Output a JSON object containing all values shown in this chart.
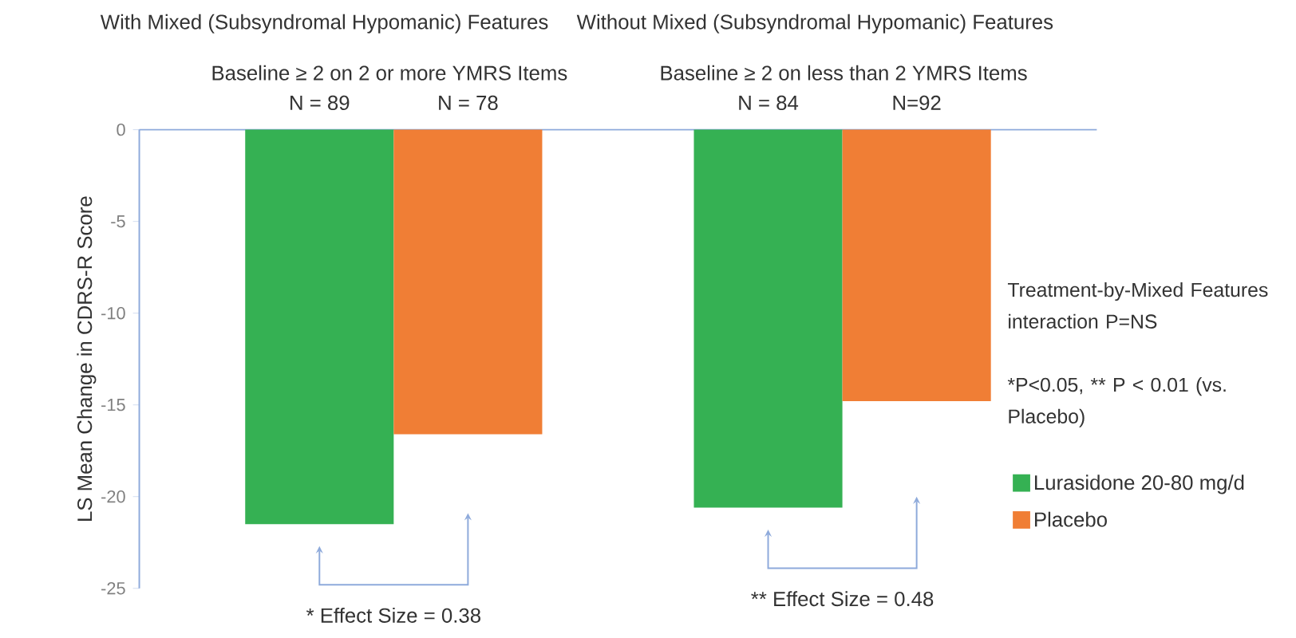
{
  "chart_data": {
    "type": "bar",
    "categories": [
      "With Mixed (Subsyndromal Hypomanic) Features",
      "Without Mixed (Subsyndromal Hypomanic) Features"
    ],
    "series": [
      {
        "name": "Lurasidone 20-80 mg/d",
        "color": "#35b153",
        "values": [
          -21.5,
          -20.6
        ]
      },
      {
        "name": "Placebo",
        "color": "#f07e35",
        "values": [
          -16.6,
          -14.8
        ]
      }
    ],
    "ylabel": "LS Mean Change in CDRS-R Score",
    "ylim": [
      -25,
      0
    ],
    "yticks": [
      -25,
      -20,
      -15,
      -10,
      -5,
      0
    ],
    "legend": "right",
    "annotations": [
      "Baseline ≥ 2 on 2 or more YMRS Items",
      "Baseline ≥ 2 on less than 2 YMRS Items",
      "N = 89",
      "N = 78",
      "N = 84",
      "N=92",
      "* Effect Size = 0.38",
      "** Effect Size = 0.48",
      "Treatment-by-Mixed Features interaction P=NS",
      "*P<0.05, ** P < 0.01 (vs. Placebo)"
    ]
  }
}
